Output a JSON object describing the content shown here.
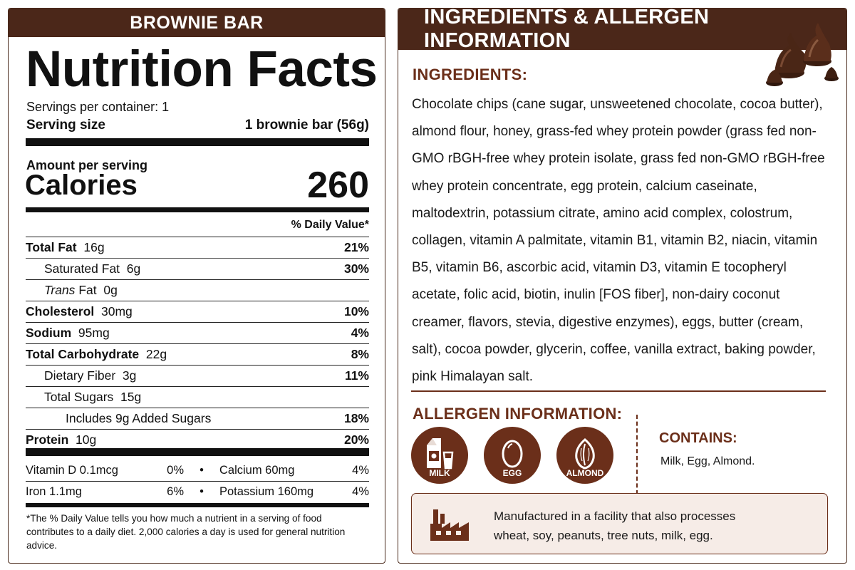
{
  "left": {
    "product_name": "BROWNIE BAR",
    "title": "Nutrition Facts",
    "servings_per_container": "Servings per container: 1",
    "serving_size_label": "Serving size",
    "serving_size_value": "1 brownie bar (56g)",
    "amount_per_serving": "Amount per serving",
    "calories_label": "Calories",
    "calories_value": "260",
    "daily_value_header": "% Daily Value*",
    "nutrients": [
      {
        "name": "Total Fat",
        "amount": "16g",
        "pct": "21%"
      },
      {
        "name": "Saturated Fat",
        "amount": "6g",
        "pct": "30%"
      },
      {
        "name_italic": "Trans",
        "name_rest": "Fat",
        "amount": "0g",
        "pct": ""
      },
      {
        "name": "Cholesterol",
        "amount": "30mg",
        "pct": "10%"
      },
      {
        "name": "Sodium",
        "amount": "95mg",
        "pct": "4%"
      },
      {
        "name": "Total Carbohydrate",
        "amount": "22g",
        "pct": "8%"
      },
      {
        "name": "Dietary Fiber",
        "amount": "3g",
        "pct": "11%"
      },
      {
        "name": "Total Sugars",
        "amount": "15g",
        "pct": ""
      },
      {
        "name": "Includes 9g Added Sugars",
        "amount": "",
        "pct": "18%"
      },
      {
        "name": "Protein",
        "amount": "10g",
        "pct": "20%"
      }
    ],
    "vitamins": [
      {
        "a": "Vitamin D 0.1mcg",
        "a_pct": "0%",
        "b": "Calcium 60mg",
        "b_pct": "4%"
      },
      {
        "a": "Iron 1.1mg",
        "a_pct": "6%",
        "b": "Potassium 160mg",
        "b_pct": "4%"
      }
    ],
    "bullet": "•",
    "footnote": "*The % Daily Value tells you how much a nutrient in a serving of food contributes to a daily diet. 2,000 calories a day is used for general nutrition advice."
  },
  "right": {
    "banner_title": "INGREDIENTS & ALLERGEN INFORMATION",
    "ingredients_heading": "INGREDIENTS:",
    "ingredients_text": "Chocolate chips (cane sugar, unsweetened chocolate, cocoa butter), almond flour, honey, grass-fed whey protein powder (grass fed non-GMO rBGH-free whey protein isolate, grass fed non-GMO rBGH-free whey protein concentrate, egg protein, calcium caseinate, maltodextrin, potassium citrate, amino acid complex, colostrum, collagen, vitamin A palmitate, vitamin B1, vitamin B2, niacin, vitamin B5, vitamin B6, ascorbic acid, vitamin D3, vitamin E tocopheryl acetate, folic acid, biotin, inulin [FOS fiber], non-dairy coconut creamer, flavors, stevia, digestive enzymes), eggs, butter (cream, salt), cocoa powder, glycerin, coffee, vanilla extract, baking powder, pink Himalayan salt.",
    "allergen_heading": "ALLERGEN INFORMATION:",
    "allergens": [
      {
        "label": "MILK",
        "icon": "milk-carton-icon"
      },
      {
        "label": "EGG",
        "icon": "egg-icon"
      },
      {
        "label": "ALMOND",
        "icon": "almond-icon"
      }
    ],
    "contains_heading": "CONTAINS:",
    "contains_text": "Milk, Egg, Almond.",
    "facility_line1": "Manufactured in a facility that also processes",
    "facility_line2": "wheat, soy, peanuts, tree nuts, milk, egg.",
    "facility_icon": "factory-icon"
  },
  "colors": {
    "brown_dark": "#4b2719",
    "brown_accent": "#6b2f1a",
    "facility_bg": "#f6ece7"
  }
}
